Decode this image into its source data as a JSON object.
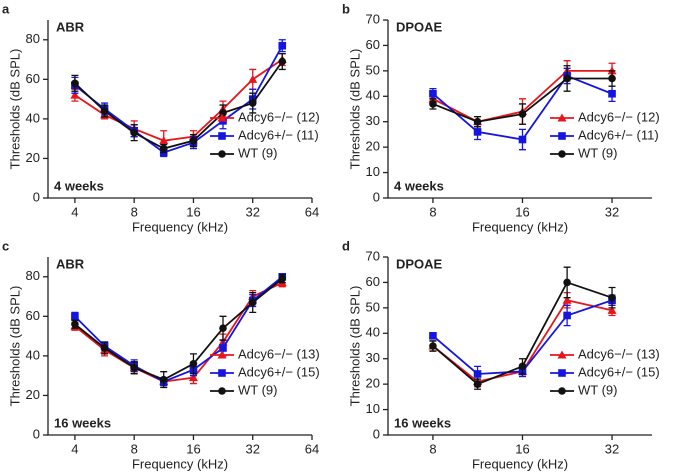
{
  "chart_data": [
    {
      "type": "line",
      "panel": "a",
      "title": "ABR",
      "annotation": "4 weeks",
      "xlabel": "Frequency (kHz)",
      "ylabel": "Thresholds (dB SPL)",
      "log_x": true,
      "xlim": [
        2.92,
        64
      ],
      "xticks": [
        4,
        8,
        16,
        32,
        64
      ],
      "ylim": [
        0,
        90
      ],
      "yticks": [
        0,
        20,
        40,
        60,
        80
      ],
      "legend": "lower right",
      "x": [
        4,
        5.66,
        8,
        11.3,
        16,
        22.6,
        32,
        45.2
      ],
      "series": [
        {
          "name": "Adcy6−/− (12)",
          "color": "#e8151b",
          "marker": "triangle",
          "values": [
            52,
            42,
            35,
            29,
            31,
            45,
            60,
            70
          ],
          "errors": [
            3,
            2,
            4,
            5,
            3,
            4,
            5,
            3
          ]
        },
        {
          "name": "Adcy6+/− (11)",
          "color": "#1515e0",
          "marker": "square",
          "values": [
            57,
            45,
            34,
            23,
            28,
            39,
            50,
            77
          ],
          "errors": [
            4,
            3,
            3,
            2,
            3,
            4,
            5,
            3
          ]
        },
        {
          "name": "WT (9)",
          "color": "#111111",
          "marker": "circle",
          "values": [
            58,
            44,
            33,
            25,
            29,
            43,
            48,
            69
          ],
          "errors": [
            4,
            3,
            4,
            2,
            3,
            4,
            5,
            4
          ]
        }
      ]
    },
    {
      "type": "line",
      "panel": "b",
      "title": "DPOAE",
      "annotation": "4 weeks",
      "xlabel": "Frequency (kHz)",
      "ylabel": "Thresholds (dB SPL)",
      "log_x": true,
      "xlim": [
        5.65,
        43.6
      ],
      "xticks": [
        8,
        16,
        32
      ],
      "ylim": [
        0,
        70
      ],
      "yticks": [
        0,
        10,
        20,
        30,
        40,
        50,
        60,
        70
      ],
      "legend": "lower right",
      "x": [
        8,
        11.3,
        16,
        22.6,
        32
      ],
      "series": [
        {
          "name": "Adcy6−/− (12)",
          "color": "#e8151b",
          "marker": "triangle",
          "values": [
            39,
            30,
            34,
            50,
            50
          ],
          "errors": [
            2,
            2,
            5,
            4,
            3
          ]
        },
        {
          "name": "Adcy6+/− (11)",
          "color": "#1515e0",
          "marker": "square",
          "values": [
            41,
            26,
            23,
            48,
            41
          ],
          "errors": [
            2,
            3,
            4,
            3,
            3
          ]
        },
        {
          "name": "WT (9)",
          "color": "#111111",
          "marker": "circle",
          "values": [
            37,
            30,
            33,
            47,
            47
          ],
          "errors": [
            2,
            2,
            4,
            5,
            3
          ]
        }
      ]
    },
    {
      "type": "line",
      "panel": "c",
      "title": "ABR",
      "annotation": "16 weeks",
      "xlabel": "Frequency (kHz)",
      "ylabel": "Thresholds (dB SPL)",
      "log_x": true,
      "xlim": [
        2.92,
        64
      ],
      "xticks": [
        4,
        8,
        16,
        32,
        64
      ],
      "ylim": [
        0,
        90
      ],
      "yticks": [
        0,
        20,
        40,
        60,
        80
      ],
      "legend": "lower right",
      "x": [
        4,
        5.66,
        8,
        11.3,
        16,
        22.6,
        32,
        45.2
      ],
      "series": [
        {
          "name": "Adcy6−/− (13)",
          "color": "#e8151b",
          "marker": "triangle",
          "values": [
            55,
            43,
            34,
            27,
            29,
            47,
            70,
            77
          ],
          "errors": [
            2,
            3,
            3,
            2,
            3,
            4,
            3,
            2
          ]
        },
        {
          "name": "Adcy6+/− (15)",
          "color": "#1515e0",
          "marker": "square",
          "values": [
            60,
            45,
            35,
            27,
            33,
            44,
            68,
            80
          ],
          "errors": [
            2,
            2,
            3,
            2,
            3,
            4,
            3,
            1
          ]
        },
        {
          "name": "WT (9)",
          "color": "#111111",
          "marker": "circle",
          "values": [
            56,
            44,
            34,
            28,
            36,
            54,
            67,
            79
          ],
          "errors": [
            2,
            3,
            3,
            4,
            5,
            6,
            5,
            2
          ]
        }
      ]
    },
    {
      "type": "line",
      "panel": "d",
      "title": "DPOAE",
      "annotation": "16 weeks",
      "xlabel": "Frequency (kHz)",
      "ylabel": "Thresholds (dB SPL)",
      "log_x": true,
      "xlim": [
        5.65,
        43.6
      ],
      "xticks": [
        8,
        16,
        32
      ],
      "ylim": [
        0,
        70
      ],
      "yticks": [
        0,
        10,
        20,
        30,
        40,
        50,
        60,
        70
      ],
      "legend": "lower right",
      "x": [
        8,
        11.3,
        16,
        22.6,
        32
      ],
      "series": [
        {
          "name": "Adcy6−/− (13)",
          "color": "#e8151b",
          "marker": "triangle",
          "values": [
            35,
            21,
            25,
            53,
            49
          ],
          "errors": [
            2,
            2,
            2,
            3,
            2
          ]
        },
        {
          "name": "Adcy6+/− (15)",
          "color": "#1515e0",
          "marker": "square",
          "values": [
            39,
            24,
            25,
            47,
            53
          ],
          "errors": [
            1,
            3,
            2,
            4,
            2
          ]
        },
        {
          "name": "WT (9)",
          "color": "#111111",
          "marker": "circle",
          "values": [
            35,
            20,
            27,
            60,
            54
          ],
          "errors": [
            2,
            2,
            3,
            6,
            4
          ]
        }
      ]
    }
  ]
}
